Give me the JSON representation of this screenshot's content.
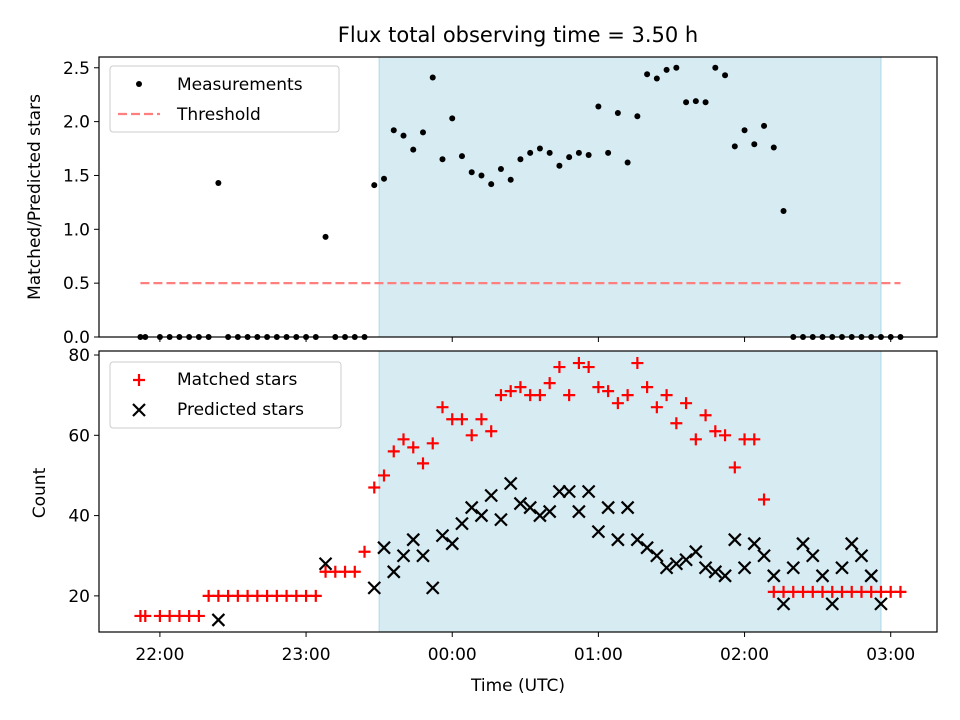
{
  "chart_data": [
    {
      "type": "scatter",
      "title": "Flux total observing time = 3.50 h",
      "xlabel": "",
      "ylabel": "Matched/Predicted stars",
      "ylim": [
        0,
        2.6
      ],
      "yticks": [
        "0.0",
        "0.5",
        "1.0",
        "1.5",
        "2.0",
        "2.5"
      ],
      "x_tick_labels": [],
      "shaded_interval": [
        "23:30",
        "02:56"
      ],
      "legend": {
        "placement": "top-left",
        "entries": [
          "Measurements",
          "Threshold"
        ]
      },
      "series": [
        {
          "name": "Measurements",
          "x": [
            "21:52",
            "21:54",
            "22:00",
            "22:04",
            "22:08",
            "22:12",
            "22:16",
            "22:20",
            "22:24",
            "22:28",
            "22:32",
            "22:36",
            "22:40",
            "22:44",
            "22:48",
            "22:52",
            "22:56",
            "23:00",
            "23:04",
            "23:08",
            "23:12",
            "23:16",
            "23:20",
            "23:24",
            "23:28",
            "23:32",
            "23:36",
            "23:40",
            "23:44",
            "23:48",
            "23:52",
            "23:56",
            "00:00",
            "00:04",
            "00:08",
            "00:12",
            "00:16",
            "00:20",
            "00:24",
            "00:28",
            "00:32",
            "00:36",
            "00:40",
            "00:44",
            "00:48",
            "00:52",
            "00:56",
            "01:00",
            "01:04",
            "01:08",
            "01:12",
            "01:16",
            "01:20",
            "01:24",
            "01:28",
            "01:32",
            "01:36",
            "01:40",
            "01:44",
            "01:48",
            "01:52",
            "01:56",
            "02:00",
            "02:04",
            "02:08",
            "02:12",
            "02:16",
            "02:20",
            "02:24",
            "02:28",
            "02:32",
            "02:36",
            "02:40",
            "02:44",
            "02:48",
            "02:52",
            "02:56",
            "03:00",
            "03:04"
          ],
          "y": [
            0,
            0,
            0,
            0,
            0,
            0,
            0,
            0,
            1.43,
            0,
            0,
            0,
            0,
            0,
            0,
            0,
            0,
            0,
            0,
            0.93,
            0,
            0,
            0,
            0,
            1.41,
            1.47,
            1.92,
            1.87,
            1.74,
            1.9,
            2.41,
            1.65,
            2.03,
            1.68,
            1.53,
            1.5,
            1.42,
            1.56,
            1.46,
            1.65,
            1.71,
            1.75,
            1.71,
            1.59,
            1.67,
            1.71,
            1.69,
            2.14,
            1.71,
            2.08,
            1.62,
            2.05,
            2.44,
            2.4,
            2.48,
            2.5,
            2.18,
            2.19,
            2.18,
            2.5,
            2.43,
            1.77,
            1.92,
            1.79,
            1.96,
            1.76,
            1.17,
            0,
            0,
            0,
            0,
            0,
            0,
            0,
            0,
            0,
            0,
            0,
            0
          ],
          "color": "#000000"
        },
        {
          "name": "Threshold",
          "x": [
            "21:52",
            "03:04"
          ],
          "y": [
            0.5,
            0.5
          ],
          "color": "#ff7f7f",
          "style": "dashed"
        }
      ]
    },
    {
      "type": "scatter",
      "title": "",
      "xlabel": "Time (UTC)",
      "ylabel": "Count",
      "ylim": [
        11,
        81
      ],
      "yticks": [
        "20",
        "40",
        "60",
        "80"
      ],
      "x_tick_labels": [
        "22:00",
        "23:00",
        "00:00",
        "01:00",
        "02:00",
        "03:00"
      ],
      "shaded_interval": [
        "23:30",
        "02:56"
      ],
      "legend": {
        "placement": "top-left",
        "entries": [
          "Matched stars",
          "Predicted stars"
        ]
      },
      "series": [
        {
          "name": "Matched stars",
          "marker": "+",
          "color": "#ff0000",
          "x": [
            "21:52",
            "21:54",
            "22:00",
            "22:04",
            "22:08",
            "22:12",
            "22:16",
            "22:20",
            "22:24",
            "22:28",
            "22:32",
            "22:36",
            "22:40",
            "22:44",
            "22:48",
            "22:52",
            "22:56",
            "23:00",
            "23:04",
            "23:08",
            "23:12",
            "23:16",
            "23:20",
            "23:24",
            "23:28",
            "23:32",
            "23:36",
            "23:40",
            "23:44",
            "23:48",
            "23:52",
            "23:56",
            "00:00",
            "00:04",
            "00:08",
            "00:12",
            "00:16",
            "00:20",
            "00:24",
            "00:28",
            "00:32",
            "00:36",
            "00:40",
            "00:44",
            "00:48",
            "00:52",
            "00:56",
            "01:00",
            "01:04",
            "01:08",
            "01:12",
            "01:16",
            "01:20",
            "01:24",
            "01:28",
            "01:32",
            "01:36",
            "01:40",
            "01:44",
            "01:48",
            "01:52",
            "01:56",
            "02:00",
            "02:04",
            "02:08",
            "02:12",
            "02:16",
            "02:20",
            "02:24",
            "02:28",
            "02:32",
            "02:36",
            "02:40",
            "02:44",
            "02:48",
            "02:52",
            "02:56",
            "03:00",
            "03:04"
          ],
          "y": [
            15,
            15,
            15,
            15,
            15,
            15,
            15,
            20,
            20,
            20,
            20,
            20,
            20,
            20,
            20,
            20,
            20,
            20,
            20,
            26,
            26,
            26,
            26,
            31,
            47,
            50,
            56,
            59,
            57,
            53,
            58,
            67,
            64,
            64,
            60,
            64,
            61,
            70,
            71,
            72,
            70,
            70,
            73,
            77,
            70,
            78,
            77,
            72,
            71,
            68,
            70,
            78,
            72,
            67,
            70,
            63,
            68,
            59,
            65,
            61,
            60,
            52,
            59,
            59,
            44,
            21,
            21,
            21,
            21,
            21,
            21,
            21,
            21,
            21,
            21,
            21,
            21,
            21,
            21
          ]
        },
        {
          "name": "Predicted stars",
          "marker": "x",
          "color": "#000000",
          "x": [
            "22:24",
            "23:08",
            "23:28",
            "23:32",
            "23:36",
            "23:40",
            "23:44",
            "23:48",
            "23:52",
            "23:56",
            "00:00",
            "00:04",
            "00:08",
            "00:12",
            "00:16",
            "00:20",
            "00:24",
            "00:28",
            "00:32",
            "00:36",
            "00:40",
            "00:44",
            "00:48",
            "00:52",
            "00:56",
            "01:00",
            "01:04",
            "01:08",
            "01:12",
            "01:16",
            "01:20",
            "01:24",
            "01:28",
            "01:32",
            "01:36",
            "01:40",
            "01:44",
            "01:48",
            "01:52",
            "01:56",
            "02:00",
            "02:04",
            "02:08",
            "02:12",
            "02:16",
            "02:20",
            "02:24",
            "02:28",
            "02:32",
            "02:36",
            "02:40",
            "02:44",
            "02:48",
            "02:52",
            "02:56"
          ],
          "y": [
            14,
            28,
            22,
            32,
            26,
            30,
            34,
            30,
            22,
            35,
            33,
            38,
            42,
            40,
            45,
            39,
            48,
            43,
            42,
            40,
            41,
            46,
            46,
            41,
            46,
            36,
            42,
            34,
            42,
            34,
            32,
            30,
            27,
            28,
            29,
            31,
            27,
            26,
            25,
            34,
            27,
            33,
            30,
            25,
            18,
            27,
            33,
            30,
            25,
            18,
            27,
            33,
            30,
            25,
            18
          ]
        }
      ]
    }
  ]
}
